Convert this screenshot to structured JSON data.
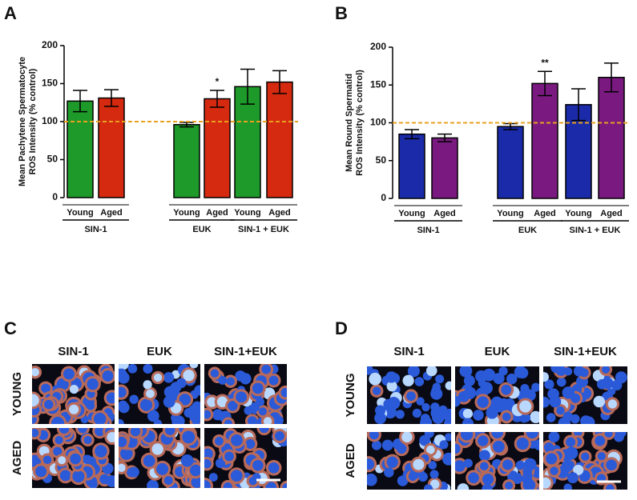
{
  "chart_data": [
    {
      "type": "bar",
      "letter": "A",
      "ylabel": [
        "Mean Pachytene Spermatocyte",
        "ROS Intensity (% control)"
      ],
      "categories": [
        "SIN-1",
        "EUK",
        "SIN-1 + EUK"
      ],
      "series": [
        {
          "name": "Young",
          "color": "#1e9a2a",
          "values": [
            127,
            96,
            146
          ],
          "errors": [
            14,
            3,
            23
          ]
        },
        {
          "name": "Aged",
          "color": "#d62a10",
          "values": [
            131,
            130,
            152
          ],
          "errors": [
            11,
            11,
            15
          ]
        }
      ],
      "ylim": [
        0,
        200
      ],
      "yticks": [
        0,
        50,
        100,
        150,
        200
      ],
      "reference_line": {
        "value": 100,
        "color": "#e8a020"
      },
      "annotations": [
        {
          "series": 1,
          "index": 1,
          "text": "*"
        }
      ]
    },
    {
      "type": "bar",
      "letter": "B",
      "ylabel": [
        "Mean Round Spermatid",
        "ROS Intensity (% control)"
      ],
      "categories": [
        "SIN-1",
        "EUK",
        "SIN-1 + EUK"
      ],
      "series": [
        {
          "name": "Young",
          "color": "#1a2aa8",
          "values": [
            85,
            95,
            124
          ],
          "errors": [
            6,
            4,
            21
          ]
        },
        {
          "name": "Aged",
          "color": "#7a1a80",
          "values": [
            80,
            152,
            160
          ],
          "errors": [
            5,
            16,
            19
          ]
        }
      ],
      "ylim": [
        0,
        200
      ],
      "yticks": [
        0,
        50,
        100,
        150,
        200
      ],
      "reference_line": {
        "value": 100,
        "color": "#e8a020"
      },
      "annotations": [
        {
          "series": 1,
          "index": 1,
          "text": "**"
        }
      ]
    }
  ],
  "image_panels": [
    {
      "letter": "C",
      "columns": [
        "SIN-1",
        "EUK",
        "SIN-1+EUK"
      ],
      "rows": [
        "YOUNG",
        "AGED"
      ]
    },
    {
      "letter": "D",
      "columns": [
        "SIN-1",
        "EUK",
        "SIN-1+EUK"
      ],
      "rows": [
        "YOUNG",
        "AGED"
      ]
    }
  ]
}
